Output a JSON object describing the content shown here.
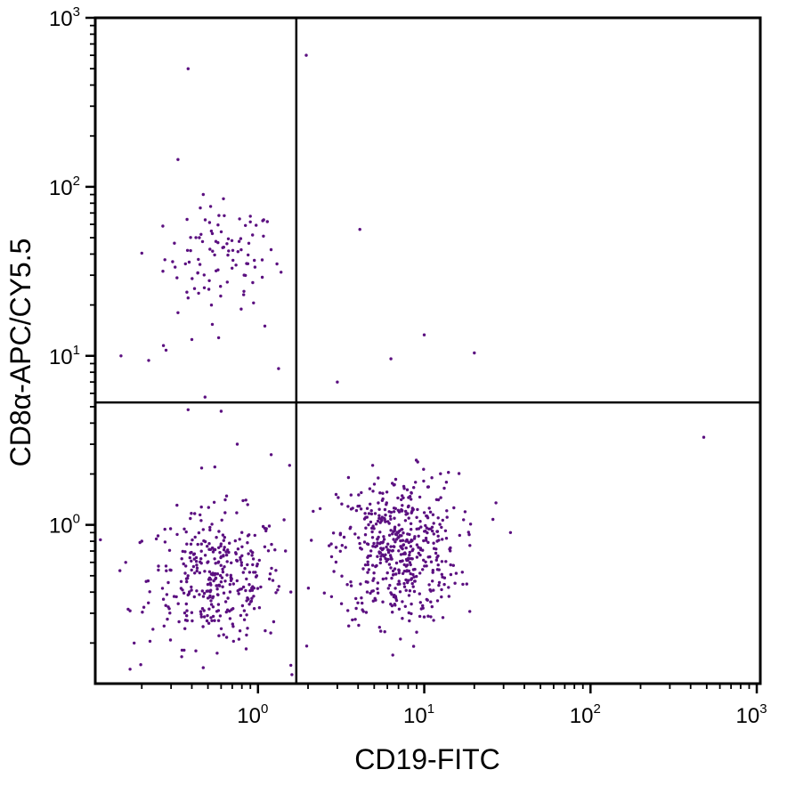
{
  "chart_data": {
    "type": "scatter",
    "xlabel": "CD19-FITC",
    "ylabel": "CD8α-APC/CY5.5",
    "x_scale": "log",
    "y_scale": "log",
    "xlim": [
      0.105,
      1050
    ],
    "ylim": [
      0.115,
      1000
    ],
    "x_ticks": [
      {
        "base": "10",
        "exp": "0",
        "value": 1
      },
      {
        "base": "10",
        "exp": "1",
        "value": 10
      },
      {
        "base": "10",
        "exp": "2",
        "value": 100
      },
      {
        "base": "10",
        "exp": "3",
        "value": 1000
      }
    ],
    "y_ticks": [
      {
        "base": "10",
        "exp": "0",
        "value": 1
      },
      {
        "base": "10",
        "exp": "1",
        "value": 10
      },
      {
        "base": "10",
        "exp": "2",
        "value": 100
      },
      {
        "base": "10",
        "exp": "3",
        "value": 1000
      }
    ],
    "quadrant_gates": {
      "x": 1.7,
      "y": 5.3
    },
    "grid": false,
    "point_color": "#5b0f80",
    "series": [
      {
        "points": [
          [
            0.38,
            500
          ],
          [
            1.95,
            600
          ],
          [
            0.33,
            145
          ],
          [
            0.62,
            85
          ],
          [
            0.9,
            67
          ],
          [
            0.9,
            62
          ],
          [
            0.45,
            75
          ],
          [
            0.38,
            22
          ],
          [
            0.33,
            18
          ],
          [
            0.4,
            12.5
          ],
          [
            0.27,
            11.5
          ],
          [
            0.28,
            10.8
          ],
          [
            0.22,
            9.4
          ],
          [
            0.15,
            10
          ],
          [
            0.58,
            12.8
          ],
          [
            0.2,
            40.5
          ],
          [
            1.3,
            35
          ],
          [
            1.33,
            8.4
          ],
          [
            0.82,
            23
          ],
          [
            1.1,
            15
          ],
          [
            4.1,
            56
          ],
          [
            10,
            13.3
          ],
          [
            6.3,
            9.6
          ],
          [
            20,
            10.4
          ],
          [
            3,
            7
          ],
          [
            480,
            3.3
          ],
          [
            0.48,
            5.7
          ],
          [
            0.38,
            4.8
          ],
          [
            0.6,
            4.7
          ],
          [
            33,
            0.9
          ],
          [
            27,
            1.35
          ],
          [
            0.75,
            3
          ],
          [
            0.55,
            2.2
          ],
          [
            1.2,
            2.6
          ],
          [
            0.17,
            0.31
          ],
          [
            0.18,
            0.2
          ],
          [
            0.17,
            0.14
          ],
          [
            1.55,
            2.25
          ],
          [
            1.6,
            0.13
          ],
          [
            0.2,
            0.8
          ],
          [
            0.16,
            0.6
          ]
        ],
        "clusters": [
          {
            "n": 90,
            "cx": 0.6,
            "cy": 38,
            "sx": 0.17,
            "sy": 0.15
          },
          {
            "n": 360,
            "cx": 0.56,
            "cy": 0.48,
            "sx": 0.2,
            "sy": 0.2
          },
          {
            "n": 520,
            "cx": 7,
            "cy": 0.72,
            "sx": 0.18,
            "sy": 0.22
          }
        ]
      }
    ]
  }
}
